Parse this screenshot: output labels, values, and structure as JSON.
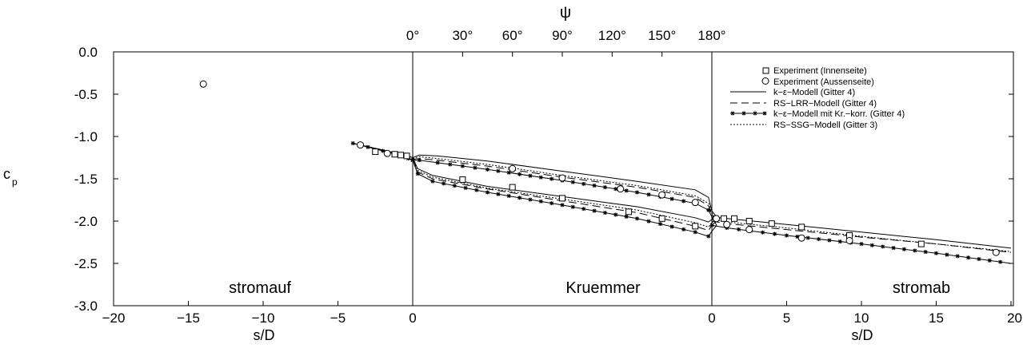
{
  "chart_data": {
    "type": "line",
    "top_axis": {
      "label": "ψ",
      "ticks": [
        "0°",
        "30°",
        "60°",
        "90°",
        "120°",
        "150°",
        "180°"
      ]
    },
    "ylabel": "c",
    "ylabel_sub": "p",
    "ylim": [
      -3.0,
      0.0
    ],
    "yticks": [
      "0.0",
      "-0.5",
      "-1.0",
      "-1.5",
      "-2.0",
      "-2.5",
      "-3.0"
    ],
    "x_left_label": "s/D",
    "x_right_label": "s/D",
    "x_left_ticks": [
      "−20",
      "−15",
      "−10",
      "−5",
      "0"
    ],
    "x_right_ticks": [
      "0",
      "5",
      "10",
      "15",
      "20"
    ],
    "regions": [
      "stromauf",
      "Kruemmer",
      "stromab"
    ],
    "legend_position": "top-right",
    "legend": [
      {
        "marker": "square",
        "label": "Experiment (Innenseite)"
      },
      {
        "marker": "circle",
        "label": "Experiment (Aussenseite)"
      },
      {
        "line": "solid",
        "label": "k−ε−Modell (Gitter 4)"
      },
      {
        "line": "dashed",
        "label": "RS−LRR−Modell (Gitter 4)"
      },
      {
        "line": "solid-star",
        "label": "k−ε−Modell mit Kr.−korr. (Gitter 4)"
      },
      {
        "line": "dotted",
        "label": "RS−SSG−Modell (Gitter 3)"
      }
    ],
    "experiment_innenseite": [
      [
        -2.5,
        -1.18
      ],
      [
        -1.2,
        -1.21
      ],
      [
        -0.8,
        -1.22
      ],
      [
        -0.4,
        -1.23
      ],
      [
        30,
        -1.51
      ],
      [
        60,
        -1.6
      ],
      [
        90,
        -1.73
      ],
      [
        130,
        -1.89
      ],
      [
        150,
        -1.97
      ],
      [
        170,
        -2.06
      ],
      [
        0.8,
        -1.97
      ],
      [
        1.5,
        -1.97
      ],
      [
        2.5,
        -2.0
      ],
      [
        4.0,
        -2.03
      ],
      [
        6.0,
        -2.07
      ],
      [
        9.2,
        -2.17
      ],
      [
        14.0,
        -2.27
      ]
    ],
    "experiment_aussenseite": [
      [
        -14.0,
        -0.38
      ],
      [
        -3.5,
        -1.1
      ],
      [
        -1.7,
        -1.2
      ],
      [
        0.3,
        -1.97
      ],
      [
        1.0,
        -2.04
      ],
      [
        2.5,
        -2.1
      ],
      [
        6.0,
        -2.2
      ],
      [
        9.2,
        -2.23
      ],
      [
        19.0,
        -2.37
      ],
      [
        60,
        -1.38
      ],
      [
        90,
        -1.49
      ],
      [
        125,
        -1.62
      ],
      [
        150,
        -1.69
      ],
      [
        170,
        -1.78
      ]
    ],
    "series": [
      {
        "name": "k−ε−Modell (Gitter 4)",
        "upstream": [
          [
            -4.0,
            -1.08
          ],
          [
            -2.0,
            -1.16
          ],
          [
            -1.0,
            -1.2
          ],
          [
            -0.3,
            -1.23
          ],
          [
            0,
            -1.25
          ]
        ],
        "outer": [
          [
            0,
            -1.25
          ],
          [
            4,
            -1.22
          ],
          [
            15,
            -1.23
          ],
          [
            45,
            -1.29
          ],
          [
            90,
            -1.41
          ],
          [
            135,
            -1.53
          ],
          [
            170,
            -1.63
          ],
          [
            178,
            -1.72
          ],
          [
            180,
            -1.88
          ]
        ],
        "inner": [
          [
            0,
            -1.25
          ],
          [
            3,
            -1.38
          ],
          [
            12,
            -1.46
          ],
          [
            45,
            -1.59
          ],
          [
            90,
            -1.71
          ],
          [
            135,
            -1.83
          ],
          [
            170,
            -1.96
          ],
          [
            178,
            -2.01
          ],
          [
            180,
            -1.98
          ]
        ],
        "downstream": [
          [
            0,
            -1.95
          ],
          [
            1,
            -1.97
          ],
          [
            5,
            -2.04
          ],
          [
            10,
            -2.13
          ],
          [
            15,
            -2.22
          ],
          [
            20,
            -2.32
          ]
        ]
      },
      {
        "name": "RS−LRR−Modell (Gitter 4)",
        "upstream": [
          [
            -4.0,
            -1.08
          ],
          [
            -2.0,
            -1.16
          ],
          [
            -1.0,
            -1.21
          ],
          [
            -0.3,
            -1.25
          ],
          [
            0,
            -1.27
          ]
        ],
        "outer": [
          [
            0,
            -1.27
          ],
          [
            4,
            -1.26
          ],
          [
            15,
            -1.28
          ],
          [
            45,
            -1.35
          ],
          [
            90,
            -1.48
          ],
          [
            135,
            -1.6
          ],
          [
            170,
            -1.72
          ],
          [
            178,
            -1.82
          ],
          [
            180,
            -1.92
          ]
        ],
        "inner": [
          [
            0,
            -1.27
          ],
          [
            3,
            -1.42
          ],
          [
            12,
            -1.5
          ],
          [
            45,
            -1.62
          ],
          [
            90,
            -1.76
          ],
          [
            135,
            -1.9
          ],
          [
            170,
            -2.06
          ],
          [
            178,
            -2.11
          ],
          [
            180,
            -2.05
          ]
        ],
        "downstream": [
          [
            0,
            -2.0
          ],
          [
            1,
            -2.03
          ],
          [
            5,
            -2.1
          ],
          [
            10,
            -2.19
          ],
          [
            15,
            -2.27
          ],
          [
            20,
            -2.37
          ]
        ]
      },
      {
        "name": "k−ε−Modell mit Kr.−korr. (Gitter 4)",
        "upstream": [
          [
            -4.0,
            -1.08
          ],
          [
            -2.0,
            -1.17
          ],
          [
            -1.0,
            -1.22
          ],
          [
            -0.3,
            -1.26
          ],
          [
            0,
            -1.28
          ]
        ],
        "outer": [
          [
            0,
            -1.28
          ],
          [
            4,
            -1.28
          ],
          [
            15,
            -1.31
          ],
          [
            45,
            -1.39
          ],
          [
            90,
            -1.52
          ],
          [
            135,
            -1.66
          ],
          [
            170,
            -1.79
          ],
          [
            178,
            -1.87
          ],
          [
            180,
            -1.95
          ]
        ],
        "inner": [
          [
            0,
            -1.28
          ],
          [
            3,
            -1.44
          ],
          [
            12,
            -1.53
          ],
          [
            45,
            -1.66
          ],
          [
            90,
            -1.81
          ],
          [
            135,
            -1.97
          ],
          [
            170,
            -2.13
          ],
          [
            178,
            -2.18
          ],
          [
            180,
            -2.12
          ]
        ],
        "downstream": [
          [
            0,
            -2.05
          ],
          [
            1,
            -2.08
          ],
          [
            5,
            -2.17
          ],
          [
            10,
            -2.27
          ],
          [
            15,
            -2.38
          ],
          [
            20,
            -2.5
          ]
        ]
      },
      {
        "name": "RS−SSG−Modell (Gitter 3)",
        "upstream": [
          [
            -4.0,
            -1.08
          ],
          [
            -2.0,
            -1.16
          ],
          [
            -1.0,
            -1.21
          ],
          [
            -0.3,
            -1.24
          ],
          [
            0,
            -1.26
          ]
        ],
        "outer": [
          [
            0,
            -1.26
          ],
          [
            4,
            -1.24
          ],
          [
            15,
            -1.26
          ],
          [
            45,
            -1.33
          ],
          [
            90,
            -1.46
          ],
          [
            135,
            -1.58
          ],
          [
            170,
            -1.7
          ],
          [
            178,
            -1.79
          ],
          [
            180,
            -1.9
          ]
        ],
        "inner": [
          [
            0,
            -1.26
          ],
          [
            3,
            -1.4
          ],
          [
            12,
            -1.48
          ],
          [
            45,
            -1.61
          ],
          [
            90,
            -1.74
          ],
          [
            135,
            -1.87
          ],
          [
            170,
            -2.02
          ],
          [
            178,
            -2.07
          ],
          [
            180,
            -2.02
          ]
        ],
        "downstream": [
          [
            0,
            -1.98
          ],
          [
            1,
            -2.01
          ],
          [
            5,
            -2.08
          ],
          [
            10,
            -2.18
          ],
          [
            15,
            -2.27
          ],
          [
            20,
            -2.36
          ]
        ]
      }
    ]
  }
}
